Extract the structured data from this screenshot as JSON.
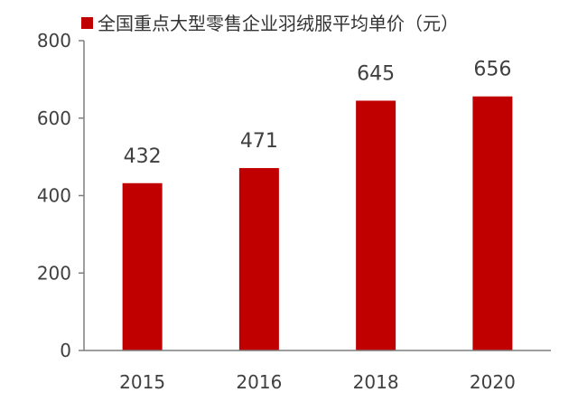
{
  "chart_data": {
    "type": "bar",
    "title": "",
    "xlabel": "",
    "ylabel": "",
    "categories": [
      "2015",
      "2016",
      "2018",
      "2020"
    ],
    "series": [
      {
        "name": "全国重点大型零售企业羽绒服平均单价（元）",
        "values": [
          432,
          471,
          645,
          656
        ],
        "color": "#c00000"
      }
    ],
    "ylim": [
      0,
      800
    ],
    "yticks": [
      0,
      200,
      400,
      600,
      800
    ],
    "grid": false,
    "legend_position": "top",
    "data_labels": true
  }
}
